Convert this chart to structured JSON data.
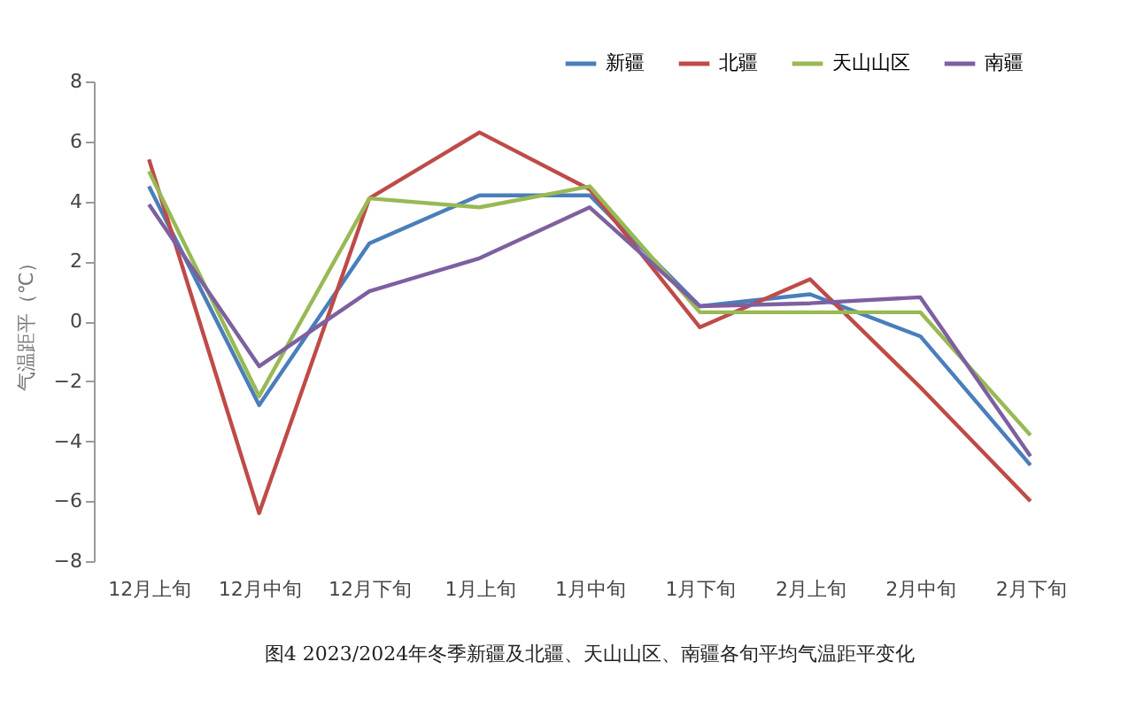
{
  "chart_data": {
    "type": "line",
    "title": "图4 2023/2024年冬季新疆及北疆、天山山区、南疆各旬平均气温距平变化",
    "ylabel": "气温距平（℃）",
    "categories": [
      "12月上旬",
      "12月中旬",
      "12月下旬",
      "1月上旬",
      "1月中旬",
      "1月下旬",
      "2月上旬",
      "2月中旬",
      "2月下旬"
    ],
    "ylim": [
      -8,
      8
    ],
    "yticks": [
      -8,
      -6,
      -4,
      -2,
      0,
      2,
      4,
      6,
      8
    ],
    "grid": false,
    "legend": "top right",
    "marker": "none",
    "line_style": "solid",
    "series": [
      {
        "name": "新疆",
        "color": "#4a7ebb",
        "values": [
          4.5,
          -2.8,
          2.6,
          4.2,
          4.2,
          0.5,
          0.9,
          -0.5,
          -4.8
        ]
      },
      {
        "name": "北疆",
        "color": "#be4b48",
        "values": [
          5.4,
          -6.4,
          4.1,
          6.3,
          4.4,
          -0.2,
          1.4,
          -2.2,
          -6.0
        ]
      },
      {
        "name": "天山山区",
        "color": "#98b954",
        "values": [
          5.0,
          -2.5,
          4.1,
          3.8,
          4.5,
          0.3,
          0.3,
          0.3,
          -3.8
        ]
      },
      {
        "name": "南疆",
        "color": "#7d60a0",
        "values": [
          3.9,
          -1.5,
          1.0,
          2.1,
          3.8,
          0.5,
          0.6,
          0.8,
          -4.5
        ]
      }
    ]
  }
}
